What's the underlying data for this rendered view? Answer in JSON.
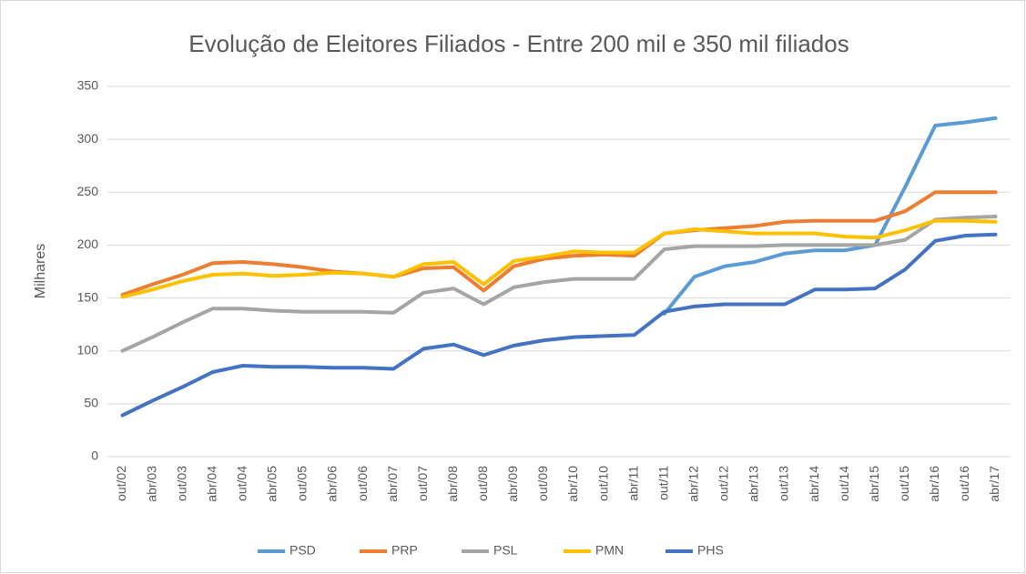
{
  "chart_data": {
    "type": "line",
    "title": "Evolução de Eleitores Filiados - Entre 200 mil e 350 mil filiados",
    "y_label": "Milhares",
    "categories": [
      "out/02",
      "abr/03",
      "out/03",
      "abr/04",
      "out/04",
      "abr/05",
      "out/05",
      "abr/06",
      "out/06",
      "abr/07",
      "out/07",
      "abr/08",
      "out/08",
      "abr/09",
      "out/09",
      "abr/10",
      "out/10",
      "abr/11",
      "out/11",
      "abr/12",
      "out/12",
      "abr/13",
      "out/13",
      "abr/14",
      "out/14",
      "abr/15",
      "out/15",
      "abr/16",
      "out/16",
      "abr/17"
    ],
    "series": [
      {
        "name": "PSD",
        "color": "#5b9bd5",
        "values": [
          null,
          null,
          null,
          null,
          null,
          null,
          null,
          null,
          null,
          null,
          null,
          null,
          null,
          null,
          null,
          null,
          null,
          null,
          135,
          170,
          180,
          184,
          192,
          195,
          195,
          200,
          255,
          313,
          316,
          320
        ]
      },
      {
        "name": "PRP",
        "color": "#ed7d31",
        "values": [
          153,
          163,
          172,
          183,
          184,
          182,
          179,
          175,
          173,
          170,
          178,
          179,
          157,
          180,
          187,
          190,
          191,
          190,
          211,
          214,
          216,
          218,
          222,
          223,
          223,
          223,
          232,
          250,
          250,
          250
        ]
      },
      {
        "name": "PSL",
        "color": "#a5a5a5",
        "values": [
          100,
          113,
          127,
          140,
          140,
          138,
          137,
          137,
          137,
          136,
          155,
          159,
          144,
          160,
          165,
          168,
          168,
          168,
          196,
          199,
          199,
          199,
          200,
          200,
          200,
          200,
          205,
          224,
          226,
          227
        ]
      },
      {
        "name": "PMN",
        "color": "#ffc000",
        "values": [
          151,
          158,
          166,
          172,
          173,
          171,
          172,
          174,
          173,
          170,
          182,
          184,
          163,
          185,
          189,
          194,
          193,
          193,
          211,
          215,
          213,
          211,
          211,
          211,
          208,
          207,
          214,
          223,
          223,
          222
        ]
      },
      {
        "name": "PHS",
        "color": "#4472c4",
        "values": [
          39,
          53,
          66,
          80,
          86,
          85,
          85,
          84,
          84,
          83,
          102,
          106,
          96,
          105,
          110,
          113,
          114,
          115,
          137,
          142,
          144,
          144,
          144,
          158,
          158,
          159,
          177,
          204,
          209,
          210
        ]
      }
    ],
    "ylim": [
      0,
      350
    ],
    "yticks": [
      0,
      50,
      100,
      150,
      200,
      250,
      300,
      350
    ],
    "grid": true,
    "legend": "bottom"
  }
}
